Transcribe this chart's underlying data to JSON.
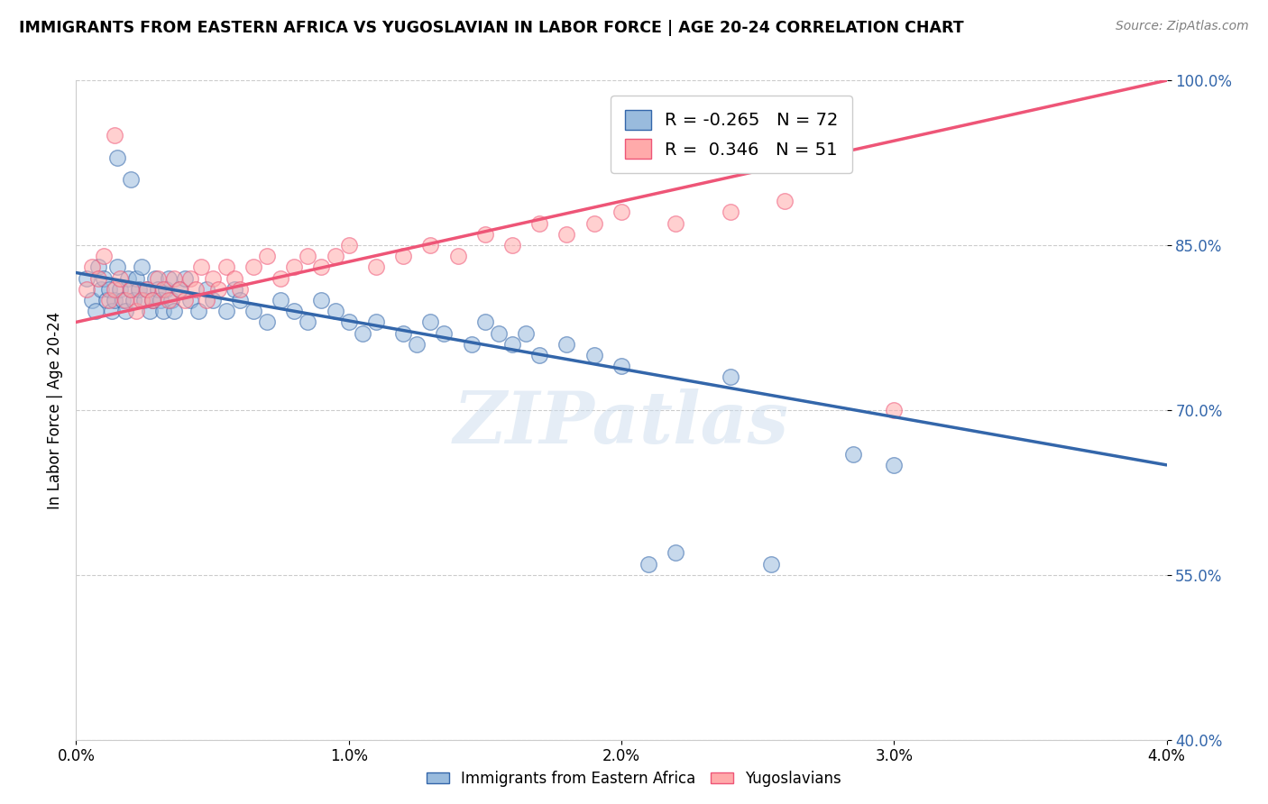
{
  "title": "IMMIGRANTS FROM EASTERN AFRICA VS YUGOSLAVIAN IN LABOR FORCE | AGE 20-24 CORRELATION CHART",
  "source": "Source: ZipAtlas.com",
  "ylabel": "In Labor Force | Age 20-24",
  "xlim": [
    0.0,
    4.0
  ],
  "ylim": [
    40.0,
    100.0
  ],
  "xtick_vals": [
    0.0,
    1.0,
    2.0,
    3.0,
    4.0
  ],
  "xtick_labels": [
    "0.0%",
    "1.0%",
    "2.0%",
    "3.0%",
    "4.0%"
  ],
  "ytick_vals": [
    40.0,
    55.0,
    70.0,
    85.0,
    100.0
  ],
  "ytick_labels": [
    "40.0%",
    "55.0%",
    "70.0%",
    "85.0%",
    "100.0%"
  ],
  "legend_label1": "Immigrants from Eastern Africa",
  "legend_label2": "Yugoslavians",
  "R1": -0.265,
  "N1": 72,
  "R2": 0.346,
  "N2": 51,
  "color1": "#99BBDD",
  "color2": "#FFAAAA",
  "trendline1_color": "#3366AA",
  "trendline2_color": "#EE5577",
  "background_color": "#FFFFFF",
  "watermark": "ZIPatlas",
  "blue_scatter_x": [
    0.04,
    0.06,
    0.07,
    0.08,
    0.09,
    0.1,
    0.11,
    0.12,
    0.13,
    0.14,
    0.15,
    0.16,
    0.17,
    0.18,
    0.19,
    0.2,
    0.21,
    0.22,
    0.23,
    0.24,
    0.25,
    0.26,
    0.27,
    0.28,
    0.29,
    0.3,
    0.31,
    0.32,
    0.33,
    0.34,
    0.35,
    0.36,
    0.38,
    0.4,
    0.42,
    0.45,
    0.48,
    0.5,
    0.55,
    0.58,
    0.6,
    0.65,
    0.7,
    0.75,
    0.8,
    0.85,
    0.9,
    0.95,
    1.0,
    1.05,
    1.1,
    1.2,
    1.25,
    1.3,
    1.35,
    1.45,
    1.5,
    1.55,
    1.6,
    1.65,
    1.7,
    1.8,
    1.9,
    2.0,
    2.1,
    2.2,
    2.4,
    2.55,
    2.85,
    3.0,
    0.15,
    0.2
  ],
  "blue_scatter_y": [
    82,
    80,
    79,
    83,
    81,
    82,
    80,
    81,
    79,
    80,
    83,
    81,
    80,
    79,
    82,
    81,
    80,
    82,
    81,
    83,
    80,
    81,
    79,
    80,
    82,
    81,
    80,
    79,
    81,
    82,
    80,
    79,
    81,
    82,
    80,
    79,
    81,
    80,
    79,
    81,
    80,
    79,
    78,
    80,
    79,
    78,
    80,
    79,
    78,
    77,
    78,
    77,
    76,
    78,
    77,
    76,
    78,
    77,
    76,
    77,
    75,
    76,
    75,
    74,
    56,
    57,
    73,
    56,
    66,
    65,
    93,
    91
  ],
  "pink_scatter_x": [
    0.04,
    0.06,
    0.08,
    0.1,
    0.12,
    0.14,
    0.16,
    0.18,
    0.2,
    0.22,
    0.24,
    0.26,
    0.28,
    0.3,
    0.32,
    0.34,
    0.36,
    0.38,
    0.4,
    0.42,
    0.44,
    0.46,
    0.48,
    0.5,
    0.52,
    0.55,
    0.58,
    0.6,
    0.65,
    0.7,
    0.75,
    0.8,
    0.85,
    0.9,
    0.95,
    1.0,
    1.1,
    1.2,
    1.3,
    1.4,
    1.5,
    1.6,
    1.7,
    1.8,
    1.9,
    2.0,
    2.2,
    2.4,
    2.6,
    3.0,
    0.14
  ],
  "pink_scatter_y": [
    81,
    83,
    82,
    84,
    80,
    81,
    82,
    80,
    81,
    79,
    80,
    81,
    80,
    82,
    81,
    80,
    82,
    81,
    80,
    82,
    81,
    83,
    80,
    82,
    81,
    83,
    82,
    81,
    83,
    84,
    82,
    83,
    84,
    83,
    84,
    85,
    83,
    84,
    85,
    84,
    86,
    85,
    87,
    86,
    87,
    88,
    87,
    88,
    89,
    70,
    95
  ],
  "trendline1_x": [
    0.0,
    4.0
  ],
  "trendline1_y": [
    82.5,
    65.0
  ],
  "trendline2_x": [
    0.0,
    4.0
  ],
  "trendline2_y": [
    78.0,
    100.0
  ]
}
